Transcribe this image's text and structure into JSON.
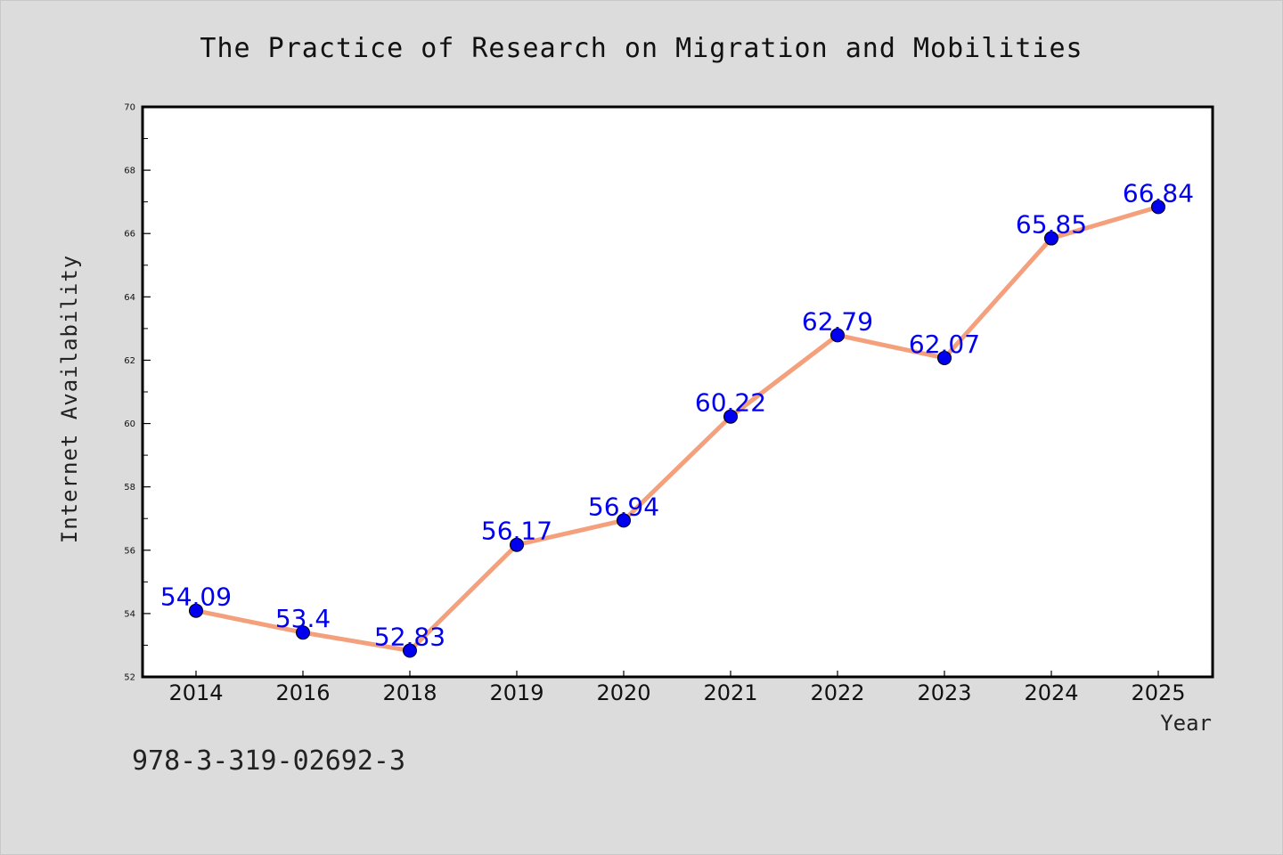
{
  "chart_data": {
    "type": "line",
    "title": "The Practice of Research on Migration and Mobilities",
    "xlabel": "Year",
    "ylabel": "Internet Availability",
    "categories": [
      "2014",
      "2016",
      "2018",
      "2019",
      "2020",
      "2021",
      "2022",
      "2023",
      "2024",
      "2025"
    ],
    "series": [
      {
        "values": [
          54.09,
          53.4,
          52.83,
          56.17,
          56.94,
          60.22,
          62.79,
          62.07,
          65.85,
          66.84
        ],
        "labels": [
          "54.09",
          "53.4",
          "52.83",
          "56.17",
          "56.94",
          "60.22",
          "62.79",
          "62.07",
          "65.85",
          "66.84"
        ]
      }
    ],
    "ylim": [
      52,
      70
    ],
    "yticks": [
      "52",
      "54",
      "56",
      "58",
      "60",
      "62",
      "64",
      "66",
      "68",
      "70"
    ],
    "grid": false,
    "line_color": "#f4a07c",
    "marker_color": "#0000ee",
    "label_color": "#0000ee"
  },
  "footer": {
    "isbn": "978-3-319-02692-3"
  }
}
